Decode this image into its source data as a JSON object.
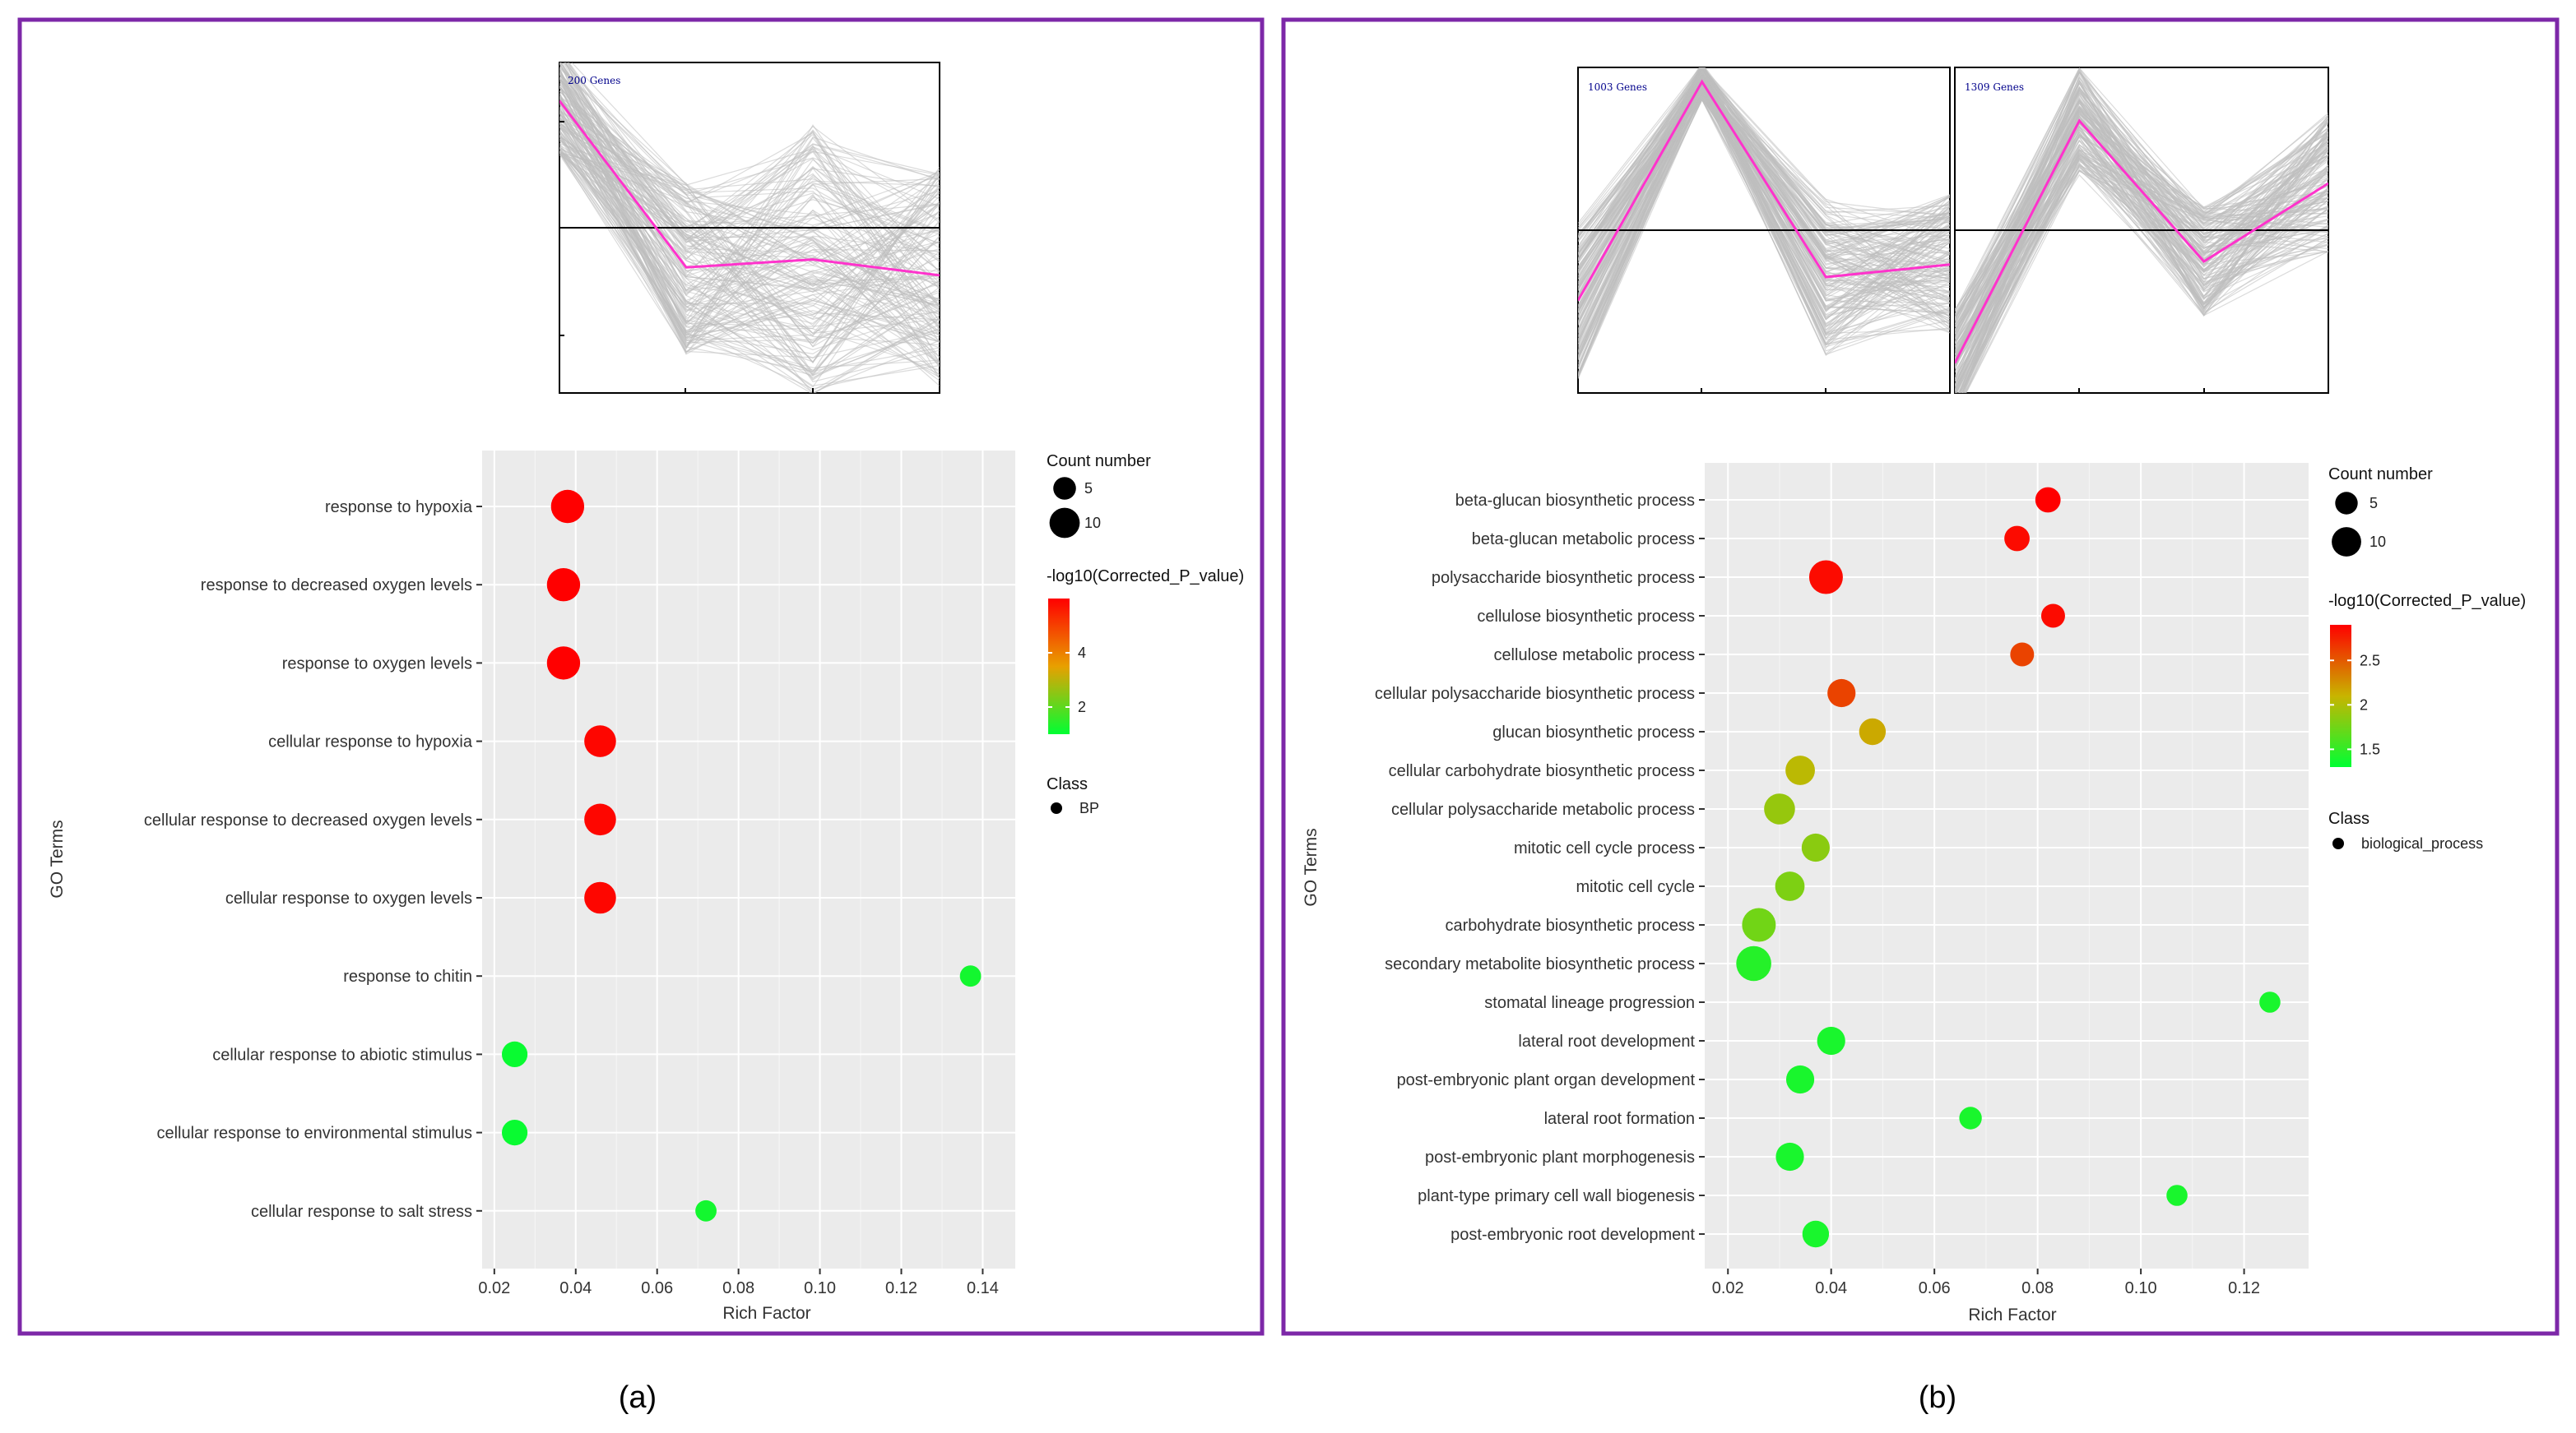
{
  "figure": {
    "captions": [
      "(a)",
      "(b)"
    ]
  },
  "colors": {
    "border": "#7d28a8",
    "plot_bg": "#ebebeb",
    "grid": "#ffffff",
    "profile_gray": "#bdbdbd",
    "profile_magenta": "#ff33cc",
    "gradient_high": "#ff0000",
    "gradient_mid": "#e8a000",
    "gradient_low": "#00ff33"
  },
  "chart_data": [
    {
      "id": "a-profile",
      "type": "line",
      "title": "200 Genes",
      "x": [
        1,
        2,
        3,
        4
      ],
      "series": [
        {
          "name": "mean profile",
          "values": [
            0.8,
            -0.25,
            -0.2,
            -0.3
          ]
        }
      ],
      "ylim": [
        -1.0,
        1.0
      ]
    },
    {
      "id": "a-dot",
      "type": "scatter",
      "xlabel": "Rich Factor",
      "ylabel": "GO Terms",
      "xlim": [
        0.017,
        0.148
      ],
      "xticks": [
        0.02,
        0.04,
        0.06,
        0.08,
        0.1,
        0.12,
        0.14
      ],
      "xtick_labels": [
        "0.02",
        "0.04",
        "0.06",
        "0.08",
        "0.10",
        "0.12",
        "0.14"
      ],
      "color_range": [
        1.0,
        6.0
      ],
      "size_range": [
        3,
        14
      ],
      "points": [
        {
          "term": "response to hypoxia",
          "rich_factor": 0.038,
          "count": 12,
          "neg_log10_p": 6.0
        },
        {
          "term": "response to decreased oxygen levels",
          "rich_factor": 0.037,
          "count": 12,
          "neg_log10_p": 6.0
        },
        {
          "term": "response to oxygen levels",
          "rich_factor": 0.037,
          "count": 12,
          "neg_log10_p": 6.0
        },
        {
          "term": "cellular response to hypoxia",
          "rich_factor": 0.046,
          "count": 11,
          "neg_log10_p": 5.9
        },
        {
          "term": "cellular response to decreased oxygen levels",
          "rich_factor": 0.046,
          "count": 11,
          "neg_log10_p": 5.9
        },
        {
          "term": "cellular response to oxygen levels",
          "rich_factor": 0.046,
          "count": 11,
          "neg_log10_p": 5.9
        },
        {
          "term": "response to chitin",
          "rich_factor": 0.137,
          "count": 4,
          "neg_log10_p": 1.2
        },
        {
          "term": "cellular response to abiotic stimulus",
          "rich_factor": 0.025,
          "count": 7,
          "neg_log10_p": 1.1
        },
        {
          "term": "cellular response to environmental stimulus",
          "rich_factor": 0.025,
          "count": 7,
          "neg_log10_p": 1.1
        },
        {
          "term": "cellular response to salt stress",
          "rich_factor": 0.072,
          "count": 4,
          "neg_log10_p": 1.2
        }
      ],
      "legend": {
        "size_title": "Count number",
        "size_entries": [
          {
            "label": "5",
            "value": 5
          },
          {
            "label": "10",
            "value": 10
          }
        ],
        "color_title": "-log10(Corrected_P_value)",
        "color_ticks": [
          {
            "label": "2",
            "value": 2
          },
          {
            "label": "4",
            "value": 4
          }
        ],
        "class_title": "Class",
        "class_entry": "BP"
      }
    },
    {
      "id": "b-profile-1",
      "type": "line",
      "title": "1003 Genes",
      "x": [
        1,
        2,
        3,
        4
      ],
      "series": [
        {
          "name": "mean profile",
          "values": [
            -0.45,
            0.95,
            -0.3,
            -0.22
          ]
        }
      ],
      "ylim": [
        -1.0,
        1.0
      ]
    },
    {
      "id": "b-profile-2",
      "type": "line",
      "title": "1309 Genes",
      "x": [
        1,
        2,
        3,
        4
      ],
      "series": [
        {
          "name": "mean profile",
          "values": [
            -0.85,
            0.7,
            -0.2,
            0.3
          ]
        }
      ],
      "ylim": [
        -1.0,
        1.0
      ]
    },
    {
      "id": "b-dot",
      "type": "scatter",
      "xlabel": "Rich Factor",
      "ylabel": "GO Terms",
      "xlim": [
        0.0155,
        0.1325
      ],
      "xticks": [
        0.02,
        0.04,
        0.06,
        0.08,
        0.1,
        0.12
      ],
      "xtick_labels": [
        "0.02",
        "0.04",
        "0.06",
        "0.08",
        "0.10",
        "0.12"
      ],
      "color_range": [
        1.3,
        2.9
      ],
      "size_range": [
        3,
        16
      ],
      "points": [
        {
          "term": "beta-glucan biosynthetic process",
          "rich_factor": 0.082,
          "count": 7,
          "neg_log10_p": 2.9
        },
        {
          "term": "beta-glucan metabolic process",
          "rich_factor": 0.076,
          "count": 7,
          "neg_log10_p": 2.85
        },
        {
          "term": "polysaccharide biosynthetic process",
          "rich_factor": 0.039,
          "count": 13,
          "neg_log10_p": 2.85
        },
        {
          "term": "cellulose biosynthetic process",
          "rich_factor": 0.083,
          "count": 6,
          "neg_log10_p": 2.85
        },
        {
          "term": "cellulose metabolic process",
          "rich_factor": 0.077,
          "count": 6,
          "neg_log10_p": 2.6
        },
        {
          "term": "cellular polysaccharide biosynthetic process",
          "rich_factor": 0.042,
          "count": 9,
          "neg_log10_p": 2.6
        },
        {
          "term": "glucan biosynthetic process",
          "rich_factor": 0.048,
          "count": 8,
          "neg_log10_p": 2.15
        },
        {
          "term": "cellular carbohydrate biosynthetic process",
          "rich_factor": 0.034,
          "count": 10,
          "neg_log10_p": 2.05
        },
        {
          "term": "cellular polysaccharide metabolic process",
          "rich_factor": 0.03,
          "count": 11,
          "neg_log10_p": 1.9
        },
        {
          "term": "mitotic cell cycle process",
          "rich_factor": 0.037,
          "count": 9,
          "neg_log10_p": 1.85
        },
        {
          "term": "mitotic cell cycle",
          "rich_factor": 0.032,
          "count": 10,
          "neg_log10_p": 1.8
        },
        {
          "term": "carbohydrate biosynthetic process",
          "rich_factor": 0.026,
          "count": 13,
          "neg_log10_p": 1.75
        },
        {
          "term": "secondary metabolite biosynthetic process",
          "rich_factor": 0.025,
          "count": 14,
          "neg_log10_p": 1.45
        },
        {
          "term": "stomatal lineage progression",
          "rich_factor": 0.125,
          "count": 4,
          "neg_log10_p": 1.4
        },
        {
          "term": "lateral root development",
          "rich_factor": 0.04,
          "count": 9,
          "neg_log10_p": 1.4
        },
        {
          "term": "post-embryonic plant organ development",
          "rich_factor": 0.034,
          "count": 9,
          "neg_log10_p": 1.4
        },
        {
          "term": "lateral root formation",
          "rich_factor": 0.067,
          "count": 5,
          "neg_log10_p": 1.4
        },
        {
          "term": "post-embryonic plant morphogenesis",
          "rich_factor": 0.032,
          "count": 9,
          "neg_log10_p": 1.4
        },
        {
          "term": "plant-type primary cell wall biogenesis",
          "rich_factor": 0.107,
          "count": 4,
          "neg_log10_p": 1.4
        },
        {
          "term": "post-embryonic root development",
          "rich_factor": 0.037,
          "count": 8,
          "neg_log10_p": 1.4
        }
      ],
      "legend": {
        "size_title": "Count number",
        "size_entries": [
          {
            "label": "5",
            "value": 5
          },
          {
            "label": "10",
            "value": 10
          }
        ],
        "color_title": "-log10(Corrected_P_value)",
        "color_ticks": [
          {
            "label": "1.5",
            "value": 1.5
          },
          {
            "label": "2",
            "value": 2
          },
          {
            "label": "2.5",
            "value": 2.5
          }
        ],
        "class_title": "Class",
        "class_entry": "biological_process"
      }
    }
  ]
}
